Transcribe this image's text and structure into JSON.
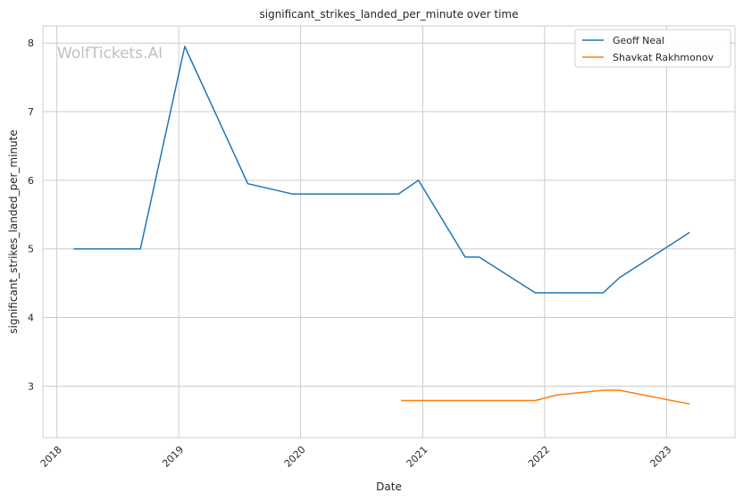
{
  "chart_data": {
    "type": "line",
    "title": "significant_strikes_landed_per_minute over time",
    "xlabel": "Date",
    "ylabel": "significant_strikes_landed_per_minute",
    "watermark": "WolfTickets.AI",
    "x_ticks": [
      "2018",
      "2019",
      "2020",
      "2021",
      "2022",
      "2023"
    ],
    "y_ticks": [
      "3",
      "4",
      "5",
      "6",
      "7",
      "8"
    ],
    "xlim": [
      "2017-11-20",
      "2023-07-25"
    ],
    "ylim": [
      2.25,
      8.25
    ],
    "grid": true,
    "legend_position": "top-right",
    "series": [
      {
        "name": "Geoff Neal",
        "color": "#1f77b4",
        "points": [
          [
            "2018-02-20",
            5.0
          ],
          [
            "2018-09-08",
            5.0
          ],
          [
            "2019-01-19",
            7.95
          ],
          [
            "2019-07-27",
            5.95
          ],
          [
            "2019-12-07",
            5.8
          ],
          [
            "2020-10-20",
            5.8
          ],
          [
            "2020-12-19",
            6.0
          ],
          [
            "2021-05-08",
            4.88
          ],
          [
            "2021-06-19",
            4.88
          ],
          [
            "2021-12-04",
            4.36
          ],
          [
            "2022-06-25",
            4.36
          ],
          [
            "2022-08-13",
            4.58
          ],
          [
            "2023-03-11",
            5.24
          ]
        ]
      },
      {
        "name": "Shavkat Rakhmonov",
        "color": "#ff7f0e",
        "points": [
          [
            "2020-10-28",
            2.79
          ],
          [
            "2021-12-04",
            2.79
          ],
          [
            "2022-02-05",
            2.87
          ],
          [
            "2022-06-25",
            2.94
          ],
          [
            "2022-08-13",
            2.94
          ],
          [
            "2023-03-11",
            2.74
          ]
        ]
      }
    ]
  }
}
